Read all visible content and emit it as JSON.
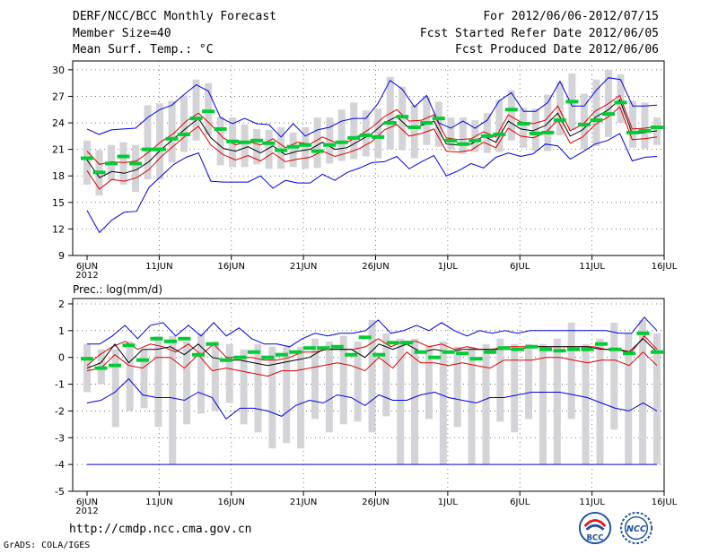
{
  "header": {
    "title": "DERF/NCC/BCC Monthly Forecast",
    "member_size": "Member Size=40",
    "variable": "Mean Surf. Temp.: °C",
    "for_range": "For 2012/06/06-2012/07/15",
    "started": "Fcst Started Refer Date 2012/06/05",
    "produced": "Fcst Produced Date 2012/06/06"
  },
  "footer": {
    "url": "http://cmdp.ncc.cma.gov.cn",
    "grads": "GrADS: COLA/IGES",
    "logo1_text": "BCC",
    "logo2_text": "NCC"
  },
  "colors": {
    "bar": "#d4d4d8",
    "mean": "#00cc33",
    "median": "#000000",
    "range": "#0000dd",
    "quartile": "#dd0000"
  },
  "chart_data": [
    {
      "type": "box-line",
      "title": "Mean Surf. Temp.: °C",
      "ylabel": "",
      "ylim": [
        9,
        31
      ],
      "yticks": [
        9,
        12,
        15,
        18,
        21,
        24,
        27,
        30
      ],
      "x_tick_labels": [
        "6JUN",
        "11JUN",
        "16JUN",
        "21JUN",
        "26JUN",
        "1JUL",
        "6JUL",
        "11JUL",
        "16JUL"
      ],
      "x_year_label": "2012",
      "days": 40,
      "series": [
        {
          "name": "max",
          "values": [
            23.3,
            22.7,
            23.2,
            23.3,
            23.4,
            24.6,
            25.5,
            26.0,
            27.2,
            28.3,
            27.6,
            24.6,
            23.9,
            24.5,
            23.9,
            23.8,
            22.4,
            23.9,
            22.5,
            23.2,
            23.5,
            24.2,
            24.5,
            24.5,
            26.2,
            28.8,
            27.8,
            25.8,
            27.1,
            24.0,
            23.4,
            24.2,
            23.4,
            24.3,
            26.5,
            27.4,
            25.3,
            25.3,
            26.3,
            28.7,
            25.9,
            25.9,
            27.7,
            29.1,
            28.9,
            25.9,
            25.9,
            26.0
          ]
        },
        {
          "name": "q_upper",
          "values": [
            20.8,
            19.3,
            19.6,
            19.5,
            19.7,
            20.7,
            21.9,
            22.8,
            24.2,
            25.1,
            23.8,
            22.3,
            21.5,
            21.9,
            21.5,
            22.2,
            21.2,
            21.8,
            21.6,
            22.4,
            21.8,
            21.8,
            22.6,
            23.5,
            24.7,
            25.5,
            24.2,
            24.3,
            24.9,
            22.3,
            22.1,
            22.2,
            23.0,
            22.4,
            24.9,
            24.1,
            23.9,
            24.3,
            25.9,
            23.1,
            23.8,
            25.3,
            26.1,
            27.1,
            23.3,
            23.4,
            23.6
          ]
        },
        {
          "name": "median",
          "values": [
            19.8,
            17.8,
            18.5,
            18.3,
            18.7,
            19.6,
            21.0,
            22.2,
            23.4,
            24.5,
            22.3,
            21.1,
            20.8,
            21.3,
            20.6,
            21.4,
            20.4,
            20.8,
            21.0,
            21.8,
            21.0,
            21.2,
            22.0,
            22.8,
            24.0,
            24.7,
            23.4,
            23.7,
            24.2,
            21.6,
            21.5,
            21.6,
            22.5,
            21.8,
            24.2,
            23.3,
            23.1,
            23.7,
            25.1,
            22.5,
            23.2,
            24.6,
            25.4,
            26.6,
            22.8,
            22.9,
            23.1
          ]
        },
        {
          "name": "q_lower",
          "values": [
            18.6,
            16.5,
            17.6,
            17.4,
            17.8,
            18.7,
            20.2,
            21.4,
            22.6,
            23.6,
            21.5,
            20.4,
            19.8,
            20.3,
            19.7,
            20.6,
            19.6,
            19.9,
            20.1,
            20.8,
            20.2,
            20.6,
            21.1,
            21.9,
            23.2,
            23.8,
            22.5,
            22.8,
            23.3,
            20.8,
            20.7,
            20.9,
            21.8,
            21.2,
            23.4,
            22.5,
            22.3,
            22.9,
            24.3,
            21.7,
            22.4,
            23.8,
            24.6,
            25.8,
            22.1,
            22.2,
            22.4
          ]
        },
        {
          "name": "min",
          "values": [
            14.1,
            11.6,
            13.0,
            13.9,
            14.0,
            16.7,
            18.0,
            19.3,
            20.1,
            20.6,
            17.4,
            17.3,
            17.3,
            17.3,
            18.0,
            16.6,
            17.5,
            17.2,
            17.2,
            18.2,
            17.5,
            18.4,
            18.9,
            19.5,
            19.6,
            20.2,
            18.8,
            19.6,
            20.3,
            18.0,
            18.6,
            19.4,
            18.9,
            20.1,
            20.6,
            20.2,
            20.5,
            21.6,
            21.4,
            19.9,
            20.7,
            21.6,
            22.0,
            22.8,
            19.7,
            20.1,
            20.2
          ]
        },
        {
          "name": "mean",
          "values": [
            20.0,
            18.4,
            19.4,
            20.2,
            19.4,
            21.0,
            21.0,
            22.2,
            22.7,
            24.5,
            25.3,
            23.3,
            21.9,
            21.8,
            22.0,
            21.7,
            20.9,
            21.3,
            21.5,
            20.8,
            21.5,
            21.8,
            22.3,
            22.6,
            22.4,
            24.0,
            24.7,
            23.5,
            24.0,
            24.5,
            22.0,
            21.6,
            22.0,
            22.5,
            22.7,
            25.5,
            23.9,
            22.8,
            22.9,
            24.3,
            26.4,
            23.8,
            24.3,
            25.0,
            26.3,
            22.9,
            23.1,
            23.5
          ]
        }
      ],
      "bars": {
        "name": "ensemble spread",
        "low": [
          17.0,
          15.8,
          17.5,
          17.0,
          16.2,
          17.6,
          17.6,
          19.5,
          20.7,
          22.0,
          22.6,
          19.2,
          19.0,
          19.0,
          19.3,
          18.8,
          18.8,
          19.0,
          18.8,
          18.9,
          19.4,
          19.7,
          19.9,
          20.2,
          20.0,
          21.0,
          20.9,
          20.0,
          21.5,
          21.3,
          21.0,
          20.5,
          20.7,
          20.6,
          20.7,
          22.0,
          21.2,
          20.8,
          20.8,
          22.6,
          23.2,
          21.0,
          21.4,
          22.4,
          24.0,
          21.2,
          21.1,
          21.5
        ],
        "high": [
          22.0,
          20.9,
          21.5,
          21.8,
          21.5,
          26.0,
          26.2,
          26.5,
          27.1,
          28.9,
          28.5,
          24.7,
          24.6,
          23.8,
          23.3,
          23.2,
          23.5,
          22.9,
          23.5,
          24.6,
          24.6,
          25.5,
          26.3,
          25.4,
          25.6,
          29.2,
          28.1,
          26.0,
          27.0,
          26.4,
          24.6,
          24.6,
          24.3,
          25.1,
          26.6,
          27.7,
          25.7,
          25.6,
          27.2,
          28.6,
          29.6,
          27.3,
          28.9,
          30.0,
          29.5,
          26.5,
          26.3,
          24.6
        ]
      }
    },
    {
      "type": "box-line",
      "title": "Prec.: log(mm/d)",
      "ylabel": "",
      "ylim": [
        -5,
        2.2
      ],
      "yticks": [
        -5,
        -4,
        -3,
        -2,
        -1,
        0,
        1,
        2
      ],
      "x_tick_labels": [
        "6JUN",
        "11JUN",
        "16JUN",
        "21JUN",
        "26JUN",
        "1JUL",
        "6JUL",
        "11JUL",
        "16JUL"
      ],
      "x_year_label": "2012",
      "days": 40,
      "series": [
        {
          "name": "max",
          "values": [
            0.5,
            0.5,
            0.8,
            1.2,
            0.7,
            1.2,
            1.3,
            0.8,
            1.2,
            0.8,
            1.3,
            0.8,
            1.1,
            0.7,
            0.5,
            0.5,
            0.4,
            0.7,
            0.9,
            0.8,
            0.9,
            0.9,
            1.0,
            1.4,
            0.9,
            1.0,
            1.2,
            1.0,
            1.3,
            1.0,
            0.8,
            1.0,
            0.9,
            1.0,
            0.9,
            1.0,
            1.0,
            1.0,
            1.0,
            1.0,
            1.0,
            1.0,
            0.9,
            0.9,
            1.5,
            1.0
          ]
        },
        {
          "name": "q_upper",
          "values": [
            -0.3,
            0.1,
            0.4,
            0.6,
            0.3,
            0.5,
            0.4,
            0.2,
            0.5,
            0.1,
            0.5,
            0.0,
            0.0,
            0.0,
            -0.1,
            -0.1,
            0.0,
            0.2,
            0.2,
            0.3,
            0.3,
            0.3,
            0.4,
            0.7,
            0.4,
            0.6,
            0.6,
            0.4,
            0.5,
            0.3,
            0.4,
            0.3,
            0.3,
            0.4,
            0.4,
            0.4,
            0.4,
            0.4,
            0.4,
            0.4,
            0.4,
            0.3,
            0.3,
            0.2,
            0.8,
            0.3
          ]
        },
        {
          "name": "median",
          "values": [
            -0.4,
            -0.2,
            0.5,
            -0.2,
            0.3,
            0.3,
            0.4,
            0.1,
            0.5,
            0.0,
            -0.1,
            -0.1,
            -0.2,
            -0.3,
            -0.2,
            -0.1,
            0.0,
            0.3,
            0.3,
            0.3,
            0.0,
            0.5,
            0.3,
            0.5,
            0.2,
            0.3,
            0.2,
            0.3,
            0.3,
            0.3,
            0.3,
            0.3,
            0.4,
            0.4,
            0.4,
            0.4,
            0.4,
            0.3,
            0.3,
            0.2,
            0.7,
            0.2
          ]
        },
        {
          "name": "q_lower",
          "values": [
            -0.5,
            -0.4,
            0.1,
            -0.3,
            -0.4,
            0.0,
            0.0,
            -0.4,
            0.1,
            -0.5,
            -0.4,
            -0.5,
            -0.6,
            -0.7,
            -0.5,
            -0.5,
            -0.4,
            -0.3,
            -0.2,
            -0.3,
            -0.5,
            0.0,
            -0.4,
            0.2,
            -0.2,
            -0.2,
            -0.3,
            -0.2,
            -0.3,
            -0.4,
            -0.1,
            -0.1,
            -0.1,
            0.0,
            0.0,
            -0.1,
            -0.2,
            -0.1,
            -0.1,
            -0.3,
            0.2,
            -0.3
          ]
        },
        {
          "name": "min",
          "values": [
            -1.7,
            -1.6,
            -1.3,
            -0.8,
            -1.4,
            -1.5,
            -1.5,
            -1.6,
            -1.3,
            -1.5,
            -2.3,
            -1.9,
            -1.9,
            -2.0,
            -2.2,
            -1.8,
            -1.6,
            -1.7,
            -1.4,
            -1.5,
            -1.8,
            -1.4,
            -1.6,
            -1.6,
            -1.4,
            -1.3,
            -1.5,
            -1.6,
            -1.7,
            -1.5,
            -1.5,
            -1.4,
            -1.3,
            -1.3,
            -1.3,
            -1.4,
            -1.5,
            -1.7,
            -1.9,
            -2.0,
            -1.7,
            -2.0
          ]
        },
        {
          "name": "mean",
          "values": [
            -0.05,
            -0.4,
            -0.3,
            0.45,
            -0.1,
            0.7,
            0.6,
            0.7,
            0.1,
            0.5,
            -0.1,
            0.0,
            0.2,
            0.0,
            0.1,
            0.2,
            0.35,
            0.35,
            0.4,
            0.1,
            0.75,
            0.1,
            0.55,
            0.55,
            0.2,
            0.0,
            0.2,
            0.15,
            -0.05,
            0.2,
            0.35,
            0.3,
            0.4,
            0.3,
            0.25,
            0.3,
            0.3,
            0.5,
            0.3,
            0.15,
            0.9,
            0.2
          ]
        },
        {
          "name": "floor",
          "values": [
            -4.0,
            -4.0
          ]
        }
      ],
      "bars": {
        "name": "ensemble spread",
        "low": [
          -1.3,
          -1.0,
          -2.6,
          -2.0,
          -1.9,
          -2.6,
          -4.0,
          -2.5,
          -2.1,
          -2.0,
          -1.7,
          -2.5,
          -2.8,
          -3.4,
          -3.2,
          -3.4,
          -2.3,
          -2.8,
          -2.5,
          -2.4,
          -2.8,
          -2.2,
          -4.0,
          -4.0,
          -2.3,
          -4.0,
          -2.6,
          -4.0,
          -4.0,
          -2.4,
          -2.8,
          -2.3,
          -4.0,
          -4.0,
          -2.3,
          -4.0,
          -4.0,
          -2.7,
          -4.0,
          -4.0,
          -4.0
        ],
        "high": [
          0.5,
          0.3,
          0.3,
          0.6,
          0.3,
          0.8,
          0.8,
          0.6,
          0.9,
          0.6,
          0.5,
          0.3,
          0.5,
          0.4,
          0.4,
          0.4,
          0.7,
          0.6,
          0.8,
          0.6,
          1.4,
          0.9,
          0.7,
          0.7,
          0.4,
          0.6,
          0.4,
          0.4,
          0.5,
          0.7,
          0.5,
          0.5,
          0.5,
          0.7,
          1.3,
          0.5,
          0.7,
          1.3,
          0.9,
          1.4,
          0.9
        ]
      }
    }
  ]
}
